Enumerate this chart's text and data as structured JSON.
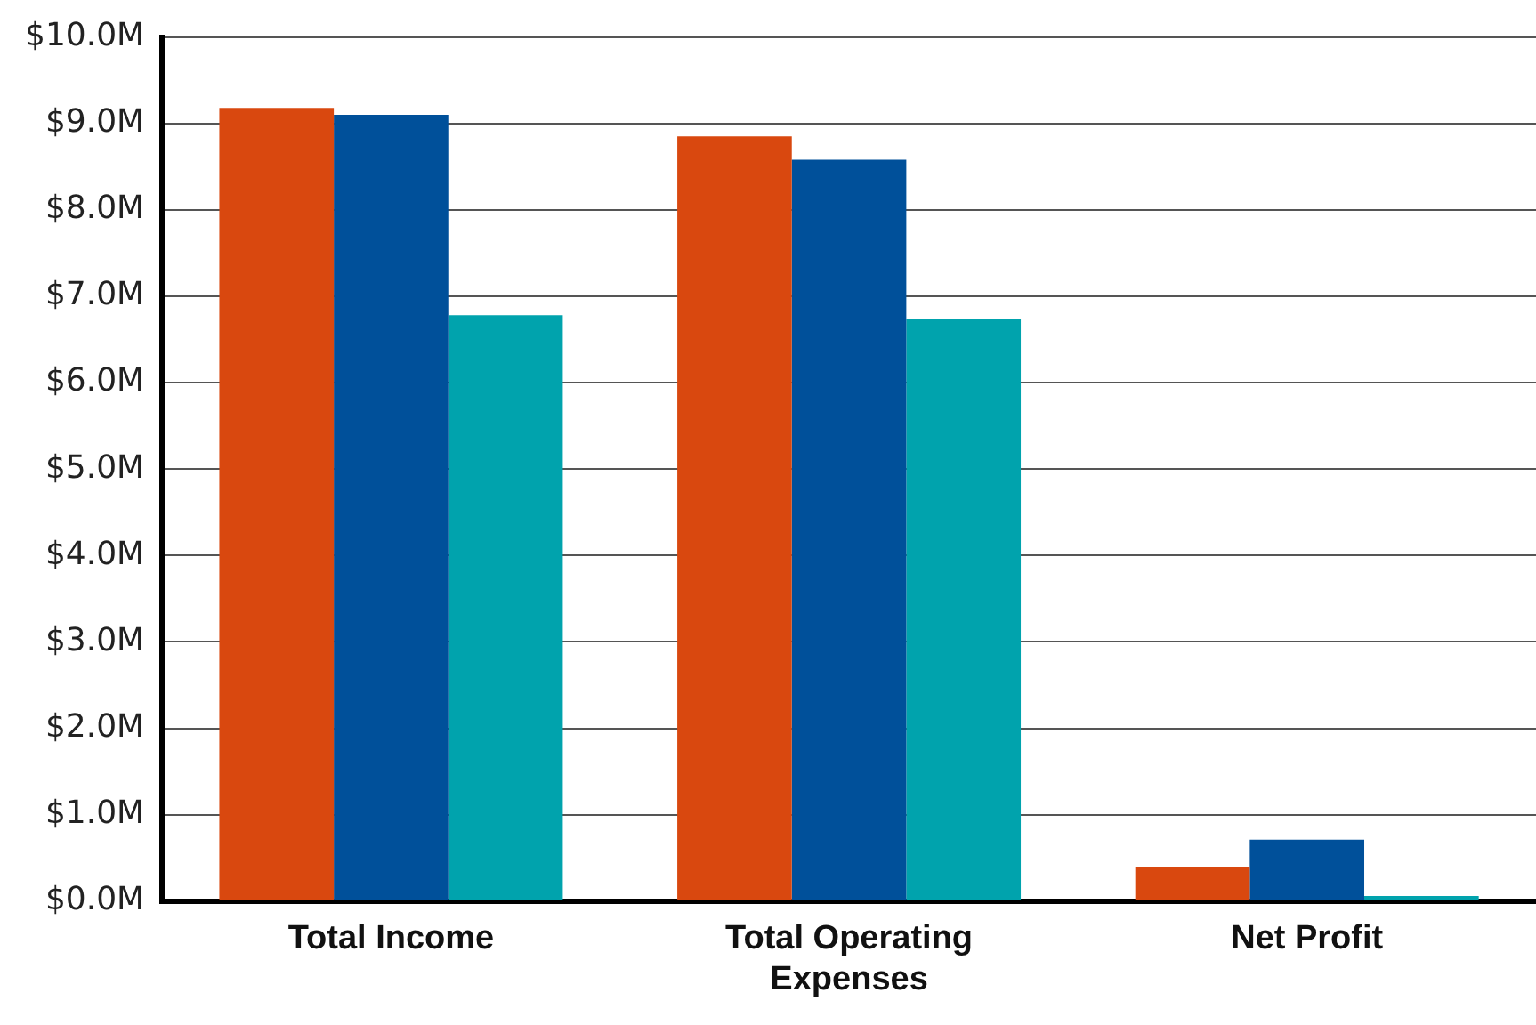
{
  "chart_data": {
    "type": "bar",
    "categories": [
      "Total Income",
      "Total Operating Expenses",
      "Net Profit"
    ],
    "series": [
      {
        "color": "#d9480f",
        "values": [
          9.18,
          8.85,
          0.4
        ]
      },
      {
        "color": "#00509a",
        "values": [
          9.1,
          8.58,
          0.71
        ]
      },
      {
        "color": "#00a3ad",
        "values": [
          6.78,
          6.74,
          0.06
        ]
      }
    ],
    "ylim": [
      0,
      10
    ],
    "yticks": [
      {
        "value": 0,
        "label": "$0.0M"
      },
      {
        "value": 1,
        "label": "$1.0M"
      },
      {
        "value": 2,
        "label": "$2.0M"
      },
      {
        "value": 3,
        "label": "$3.0M"
      },
      {
        "value": 4,
        "label": "$4.0M"
      },
      {
        "value": 5,
        "label": "$5.0M"
      },
      {
        "value": 6,
        "label": "$6.0M"
      },
      {
        "value": 7,
        "label": "$7.0M"
      },
      {
        "value": 8,
        "label": "$8.0M"
      },
      {
        "value": 9,
        "label": "$9.0M"
      },
      {
        "value": 10,
        "label": "$10.0M"
      }
    ],
    "grid": "y"
  }
}
